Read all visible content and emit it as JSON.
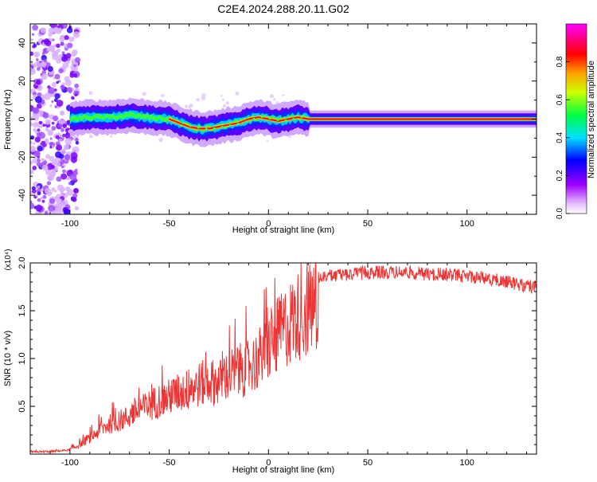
{
  "figure_title": "C2E4.2024.288.20.11.G02",
  "chart_data": [
    {
      "type": "heatmap",
      "xlabel": "Height of straight line (km)",
      "ylabel": "Frequency (Hz)",
      "xlim": [
        -120,
        135
      ],
      "ylim": [
        -50,
        50
      ],
      "x_ticks": [
        -100,
        -50,
        0,
        50,
        100
      ],
      "y_ticks": [
        -40,
        -20,
        0,
        20,
        40
      ],
      "colorbar": {
        "label": "Normalized spectral amplitude",
        "range": [
          0,
          1
        ],
        "ticks": [
          "0.0",
          "0.2",
          "0.4",
          "0.6",
          "0.8"
        ],
        "colors": [
          "#ffffff",
          "#a000ff",
          "#0000ff",
          "#00e0ff",
          "#00ff00",
          "#ffff00",
          "#ff8000",
          "#ff0000",
          "#ff00ff"
        ]
      },
      "ridge": {
        "x": [
          -100,
          -90,
          -80,
          -70,
          -60,
          -50,
          -45,
          -40,
          -35,
          -30,
          -25,
          -20,
          -15,
          -10,
          -5,
          0,
          5,
          10,
          15,
          20,
          30,
          50,
          80,
          110,
          135
        ],
        "y": [
          0,
          1,
          1,
          2,
          1,
          0,
          -2,
          -4,
          -5,
          -5,
          -4,
          -3,
          -2,
          0,
          1,
          0,
          -1,
          0,
          1,
          0,
          0,
          0,
          0,
          0,
          0
        ]
      }
    },
    {
      "type": "line",
      "xlabel": "Height of straight line (km)",
      "ylabel": "SNR (10 * v/v)",
      "y_multiplier": "(x10⁴)",
      "xlim": [
        -120,
        135
      ],
      "ylim": [
        0,
        2.0
      ],
      "x_ticks": [
        -100,
        -50,
        0,
        50,
        100
      ],
      "y_ticks": [
        "0.5",
        "1.0",
        "1.5",
        "2.0"
      ],
      "line_color": "#ee3333",
      "envelope": {
        "x": [
          -120,
          -110,
          -100,
          -95,
          -90,
          -85,
          -80,
          -75,
          -70,
          -65,
          -60,
          -55,
          -50,
          -45,
          -40,
          -35,
          -30,
          -25,
          -20,
          -15,
          -10,
          -5,
          0,
          5,
          10,
          15,
          20,
          25,
          30,
          40,
          50,
          60,
          70,
          80,
          90,
          100,
          110,
          120,
          135
        ],
        "y": [
          0.02,
          0.03,
          0.06,
          0.12,
          0.2,
          0.3,
          0.38,
          0.42,
          0.48,
          0.55,
          0.62,
          0.68,
          0.72,
          0.78,
          0.82,
          0.88,
          0.92,
          0.9,
          1.0,
          1.05,
          1.1,
          1.2,
          1.35,
          1.5,
          1.65,
          1.75,
          1.82,
          1.86,
          1.88,
          1.9,
          1.92,
          1.92,
          1.92,
          1.9,
          1.9,
          1.88,
          1.86,
          1.82,
          1.76
        ]
      }
    }
  ]
}
